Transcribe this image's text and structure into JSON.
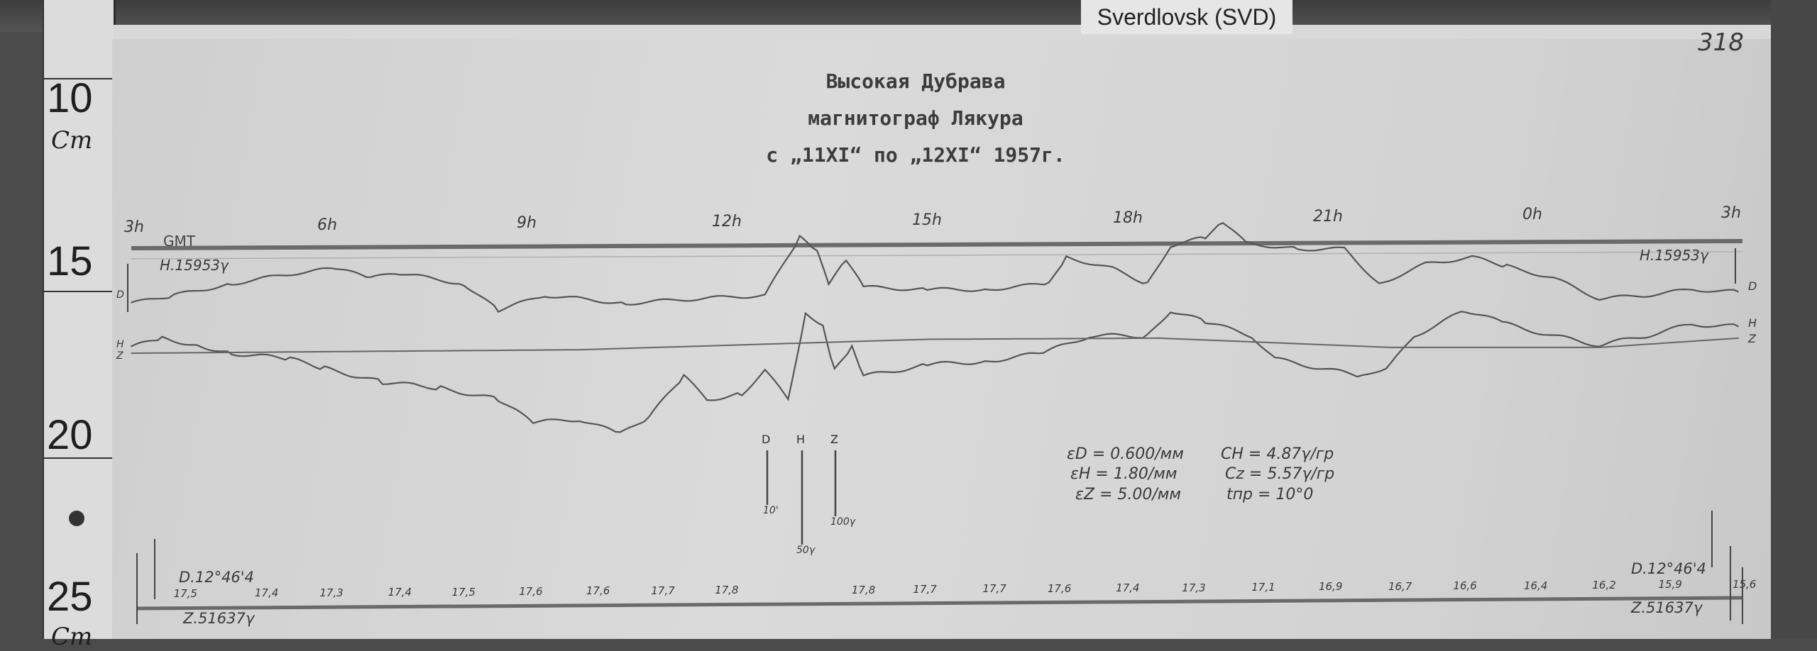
{
  "station_label": "Sverdlovsk (SVD)",
  "sheet_number": "318",
  "ruler": {
    "marks": [
      "10",
      "15",
      "20",
      "25"
    ],
    "unit": "Cm"
  },
  "header": {
    "line1": "Высокая Дубрава",
    "line2": "магнитограф Лякура",
    "line3": "с „11XI“ по „12XI“ 1957г."
  },
  "time_axis": {
    "label": "GMT",
    "hours": [
      "3h",
      "6h",
      "9h",
      "12h",
      "15h",
      "18h",
      "21h",
      "0h",
      "3h"
    ]
  },
  "baselines": {
    "h_left": "H.15953γ",
    "h_right": "H.15953γ",
    "d_left": "D.12°46'4",
    "d_right": "D.12°46'4",
    "z_left": "Z.51637γ",
    "z_right": "Z.51637γ"
  },
  "trace_labels": {
    "d": "D",
    "h": "H",
    "z": "Z"
  },
  "scale_bars": [
    {
      "label": "D",
      "value": "10'"
    },
    {
      "label": "H",
      "value": "50γ"
    },
    {
      "label": "Z",
      "value": "100γ"
    }
  ],
  "constants": {
    "eps_d": "εD = 0.600/мм",
    "eps_h": "εH = 1.80/мм",
    "eps_z": "εZ = 5.00/мм",
    "c_h": "CH = 4.87γ/гр",
    "c_z": "Cz = 5.57γ/гр",
    "t_pr": "tпр = 10°0"
  },
  "temperature_ticks": [
    "17,5",
    "17,4",
    "17,3",
    "17,4",
    "17,5",
    "17,6",
    "17,6",
    "17,7",
    "17,8",
    "17,8",
    "17,7",
    "17,7",
    "17,6",
    "17,4",
    "17,3",
    "17,1",
    "16,9",
    "16,7",
    "16,6",
    "16,4",
    "16,2",
    "15,9",
    "15,6"
  ]
}
